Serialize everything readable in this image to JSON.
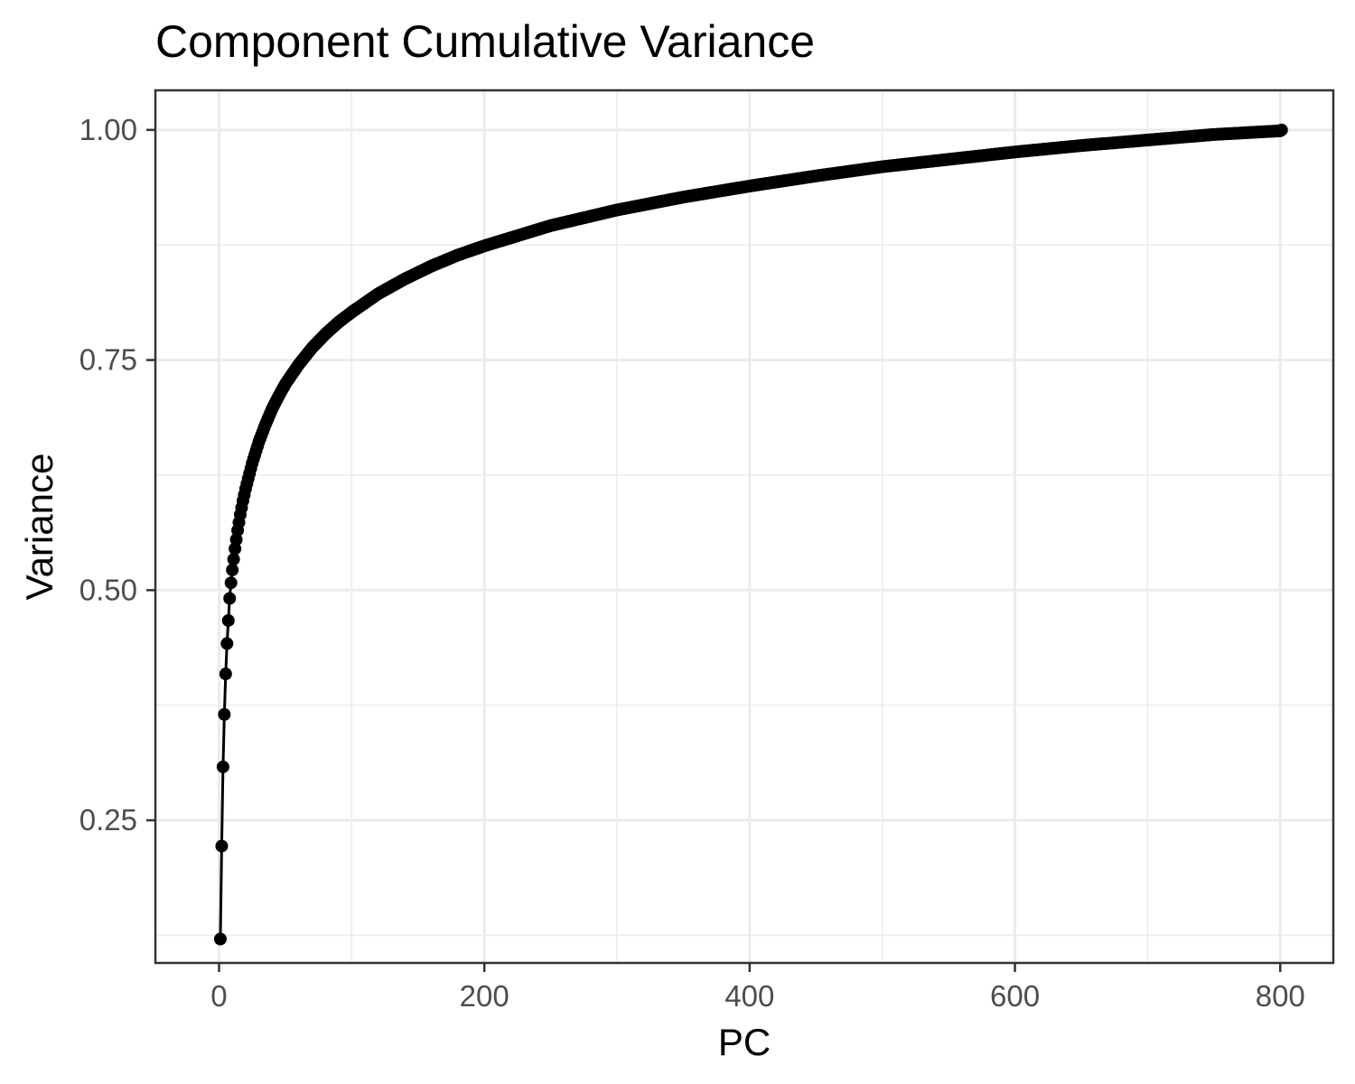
{
  "chart_data": {
    "type": "line",
    "title": "Component Cumulative Variance",
    "xlabel": "PC",
    "ylabel": "Variance",
    "xlim": [
      -48,
      840
    ],
    "ylim": [
      0.095,
      1.043
    ],
    "x_ticks": [
      0,
      200,
      400,
      600,
      800
    ],
    "x_tick_labels": [
      "0",
      "200",
      "400",
      "600",
      "800"
    ],
    "y_ticks": [
      0.25,
      0.5,
      0.75,
      1.0
    ],
    "y_tick_labels": [
      "0.25",
      "0.50",
      "0.75",
      "1.00"
    ],
    "x_minor_ticks": [
      100,
      300,
      500,
      700
    ],
    "y_minor_ticks": [
      0.125,
      0.375,
      0.625,
      0.875
    ],
    "grid": true,
    "markers": true,
    "series": [
      {
        "color": "#000000",
        "x": [
          1,
          2,
          3,
          4,
          5,
          6,
          7,
          8,
          9,
          10,
          12,
          14,
          16,
          18,
          20,
          25,
          30,
          35,
          40,
          45,
          50,
          60,
          70,
          80,
          90,
          100,
          120,
          140,
          160,
          180,
          200,
          250,
          300,
          350,
          400,
          450,
          500,
          550,
          600,
          650,
          700,
          750,
          800,
          801
        ],
        "y": [
          0.121,
          0.222,
          0.308,
          0.365,
          0.409,
          0.442,
          0.467,
          0.491,
          0.508,
          0.522,
          0.545,
          0.565,
          0.582,
          0.597,
          0.61,
          0.638,
          0.661,
          0.68,
          0.697,
          0.711,
          0.724,
          0.745,
          0.763,
          0.778,
          0.791,
          0.802,
          0.822,
          0.838,
          0.852,
          0.864,
          0.874,
          0.896,
          0.913,
          0.927,
          0.939,
          0.95,
          0.96,
          0.968,
          0.976,
          0.983,
          0.989,
          0.995,
          0.999,
          1.0
        ]
      }
    ]
  }
}
